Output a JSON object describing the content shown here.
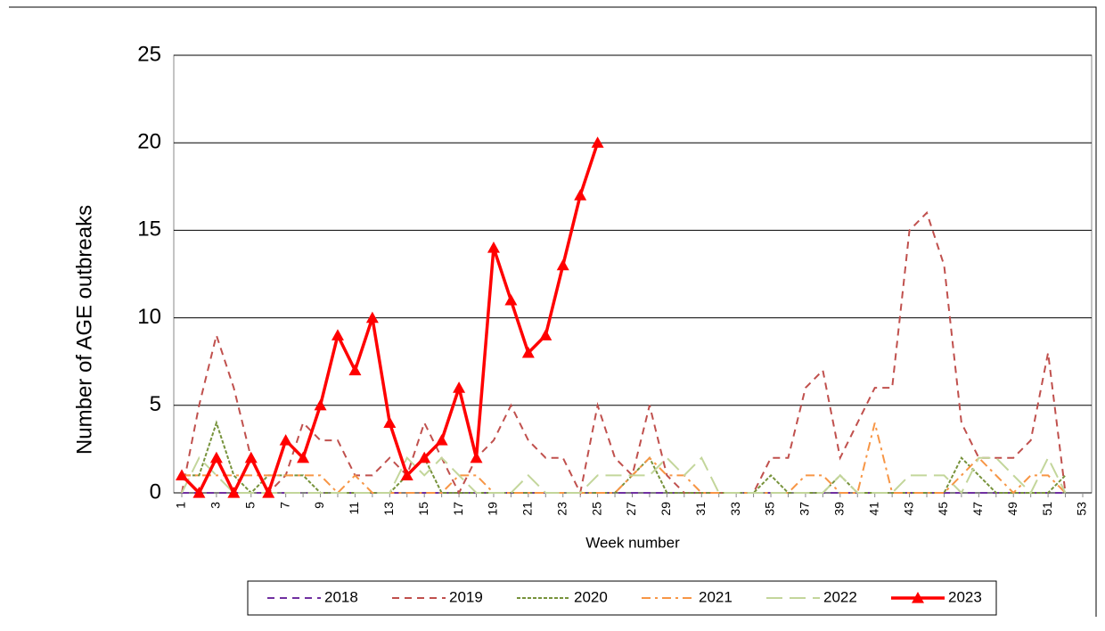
{
  "chart_data": {
    "type": "line",
    "x_label": "Week number",
    "y_label": "Number of  AGE outbreaks",
    "categories": [
      "1",
      null,
      "3",
      null,
      "5",
      null,
      "7",
      null,
      "9",
      null,
      "11",
      null,
      "13",
      null,
      "15",
      null,
      "17",
      null,
      "19",
      null,
      "21",
      null,
      "23",
      null,
      "25",
      null,
      "27",
      null,
      "29",
      null,
      "31",
      null,
      "33",
      null,
      "35",
      null,
      "37",
      null,
      "39",
      null,
      "41",
      null,
      "43",
      null,
      "45",
      null,
      "47",
      null,
      "49",
      null,
      "51",
      null,
      "53"
    ],
    "ylim": [
      0,
      25
    ],
    "yticks": [
      0,
      5,
      10,
      15,
      20,
      25
    ],
    "grid": true,
    "legend": "bottom",
    "series": [
      {
        "name": "2018",
        "color": "#7030a0",
        "dash": "dashed",
        "values": [
          0,
          0,
          0,
          0,
          0,
          0,
          0,
          0,
          0,
          0,
          0,
          0,
          0,
          0,
          0,
          0,
          0,
          0,
          0,
          0,
          0,
          0,
          0,
          0,
          0,
          0,
          0,
          0,
          0,
          0,
          0,
          0,
          0,
          0,
          0,
          0,
          0,
          0,
          0,
          0,
          0,
          0,
          0,
          0,
          0,
          0,
          0,
          0,
          0,
          0,
          0,
          0,
          null
        ]
      },
      {
        "name": "2019",
        "color": "#c0504d",
        "dash": "dashed",
        "values": [
          0,
          5,
          9,
          6,
          2,
          0,
          1,
          4,
          3,
          3,
          1,
          1,
          2,
          1,
          4,
          2,
          0,
          2,
          3,
          5,
          3,
          2,
          2,
          0,
          5,
          2,
          1,
          5,
          1,
          0,
          0,
          0,
          0,
          0,
          2,
          2,
          6,
          7,
          2,
          4,
          6,
          6,
          15,
          16,
          13,
          4,
          2,
          2,
          2,
          3,
          8,
          0,
          null
        ]
      },
      {
        "name": "2020",
        "color": "#77933c",
        "dash": "dotted",
        "values": [
          1,
          1,
          4,
          1,
          0,
          1,
          1,
          1,
          0,
          0,
          0,
          0,
          0,
          1,
          2,
          0,
          0,
          0,
          0,
          0,
          0,
          0,
          0,
          0,
          0,
          0,
          1,
          2,
          0,
          0,
          0,
          0,
          0,
          0,
          1,
          0,
          0,
          0,
          1,
          0,
          0,
          0,
          0,
          0,
          0,
          2,
          1,
          0,
          0,
          0,
          0,
          1,
          null
        ]
      },
      {
        "name": "2021",
        "color": "#f79646",
        "dash": "dashdot",
        "values": [
          1,
          1,
          1,
          1,
          1,
          1,
          1,
          1,
          1,
          0,
          1,
          0,
          0,
          0,
          0,
          0,
          1,
          1,
          0,
          0,
          0,
          0,
          0,
          0,
          0,
          0,
          1,
          2,
          1,
          1,
          0,
          0,
          0,
          0,
          0,
          0,
          1,
          1,
          0,
          0,
          4,
          0,
          0,
          0,
          0,
          1,
          2,
          1,
          0,
          1,
          1,
          0,
          null
        ]
      },
      {
        "name": "2022",
        "color": "#c3d69b",
        "dash": "long",
        "values": [
          0,
          2,
          1,
          0,
          0,
          0,
          0,
          0,
          0,
          0,
          0,
          0,
          0,
          2,
          1,
          2,
          1,
          0,
          0,
          0,
          1,
          0,
          0,
          0,
          1,
          1,
          1,
          1,
          2,
          1,
          2,
          0,
          0,
          0,
          0,
          0,
          0,
          0,
          1,
          0,
          0,
          0,
          1,
          1,
          1,
          0,
          2,
          2,
          1,
          0,
          2,
          0,
          null
        ]
      },
      {
        "name": "2023",
        "color": "#ff0000",
        "dash": "solid",
        "marker": "triangle",
        "values": [
          1,
          0,
          2,
          0,
          2,
          0,
          3,
          2,
          5,
          9,
          7,
          10,
          4,
          1,
          2,
          3,
          6,
          2,
          14,
          11,
          8,
          9,
          13,
          17,
          20,
          null,
          null,
          null,
          null,
          null,
          null,
          null,
          null,
          null,
          null,
          null,
          null,
          null,
          null,
          null,
          null,
          null,
          null,
          null,
          null,
          null,
          null,
          null,
          null,
          null,
          null,
          null,
          null
        ]
      }
    ]
  }
}
